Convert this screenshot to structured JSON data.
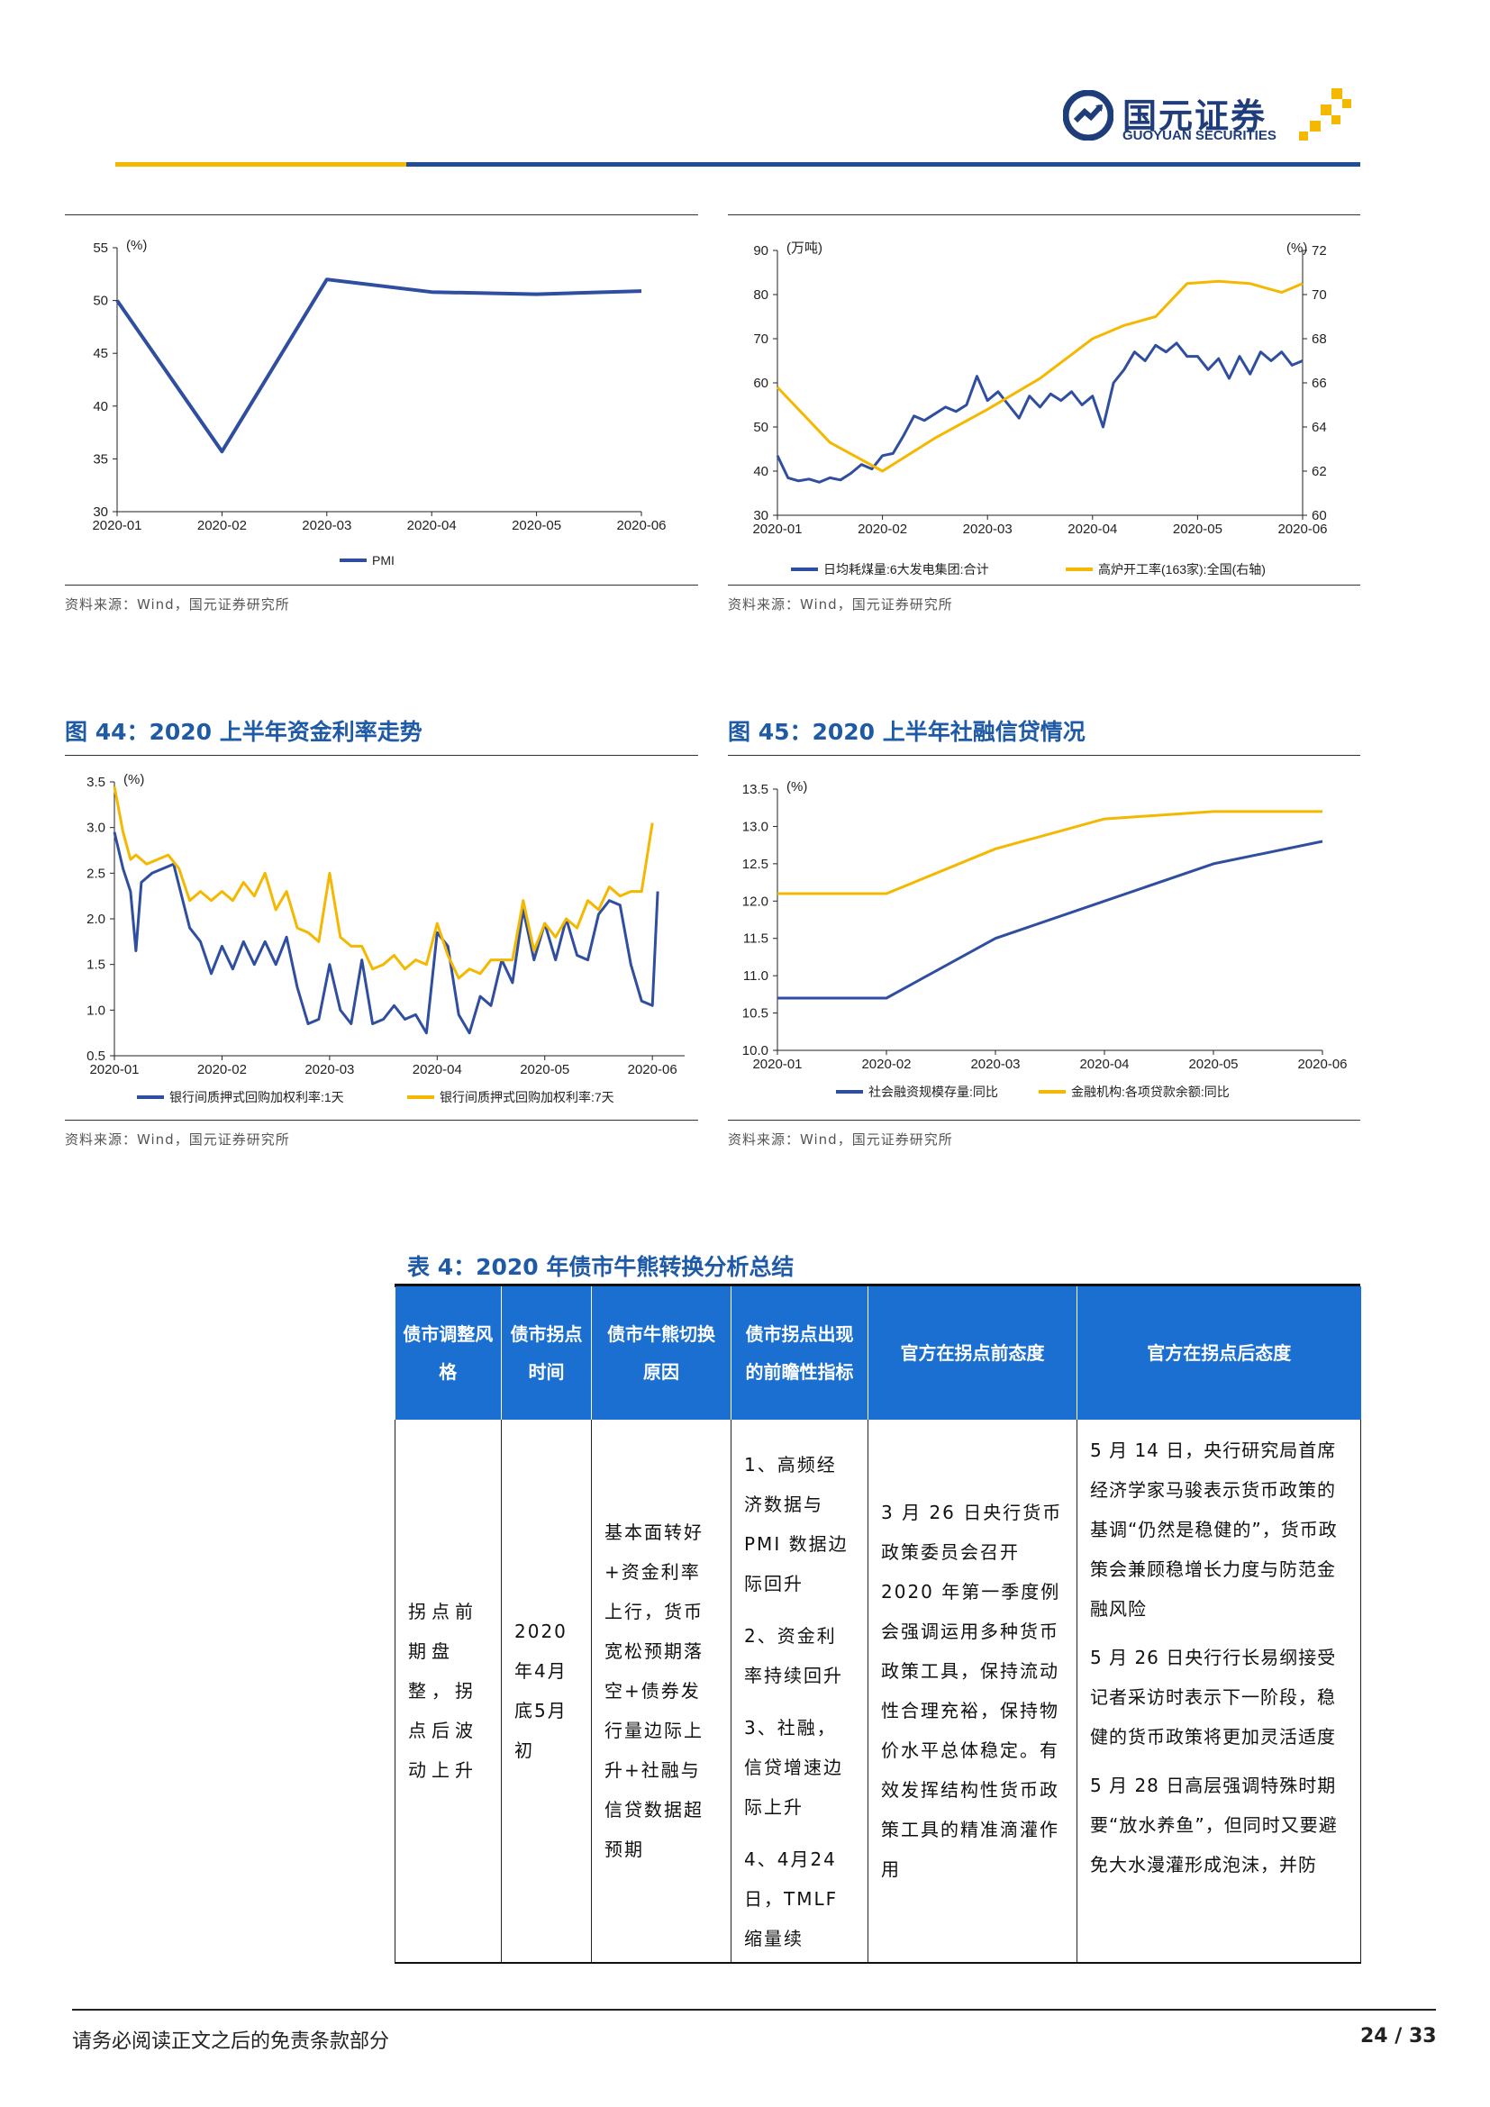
{
  "header": {
    "logo_cn": "国元证券",
    "logo_en": "GUOYUAN SECURITIES"
  },
  "charts": {
    "pmi": {
      "source": "资料来源：Wind，国元证券研究所",
      "chart_data": {
        "type": "line",
        "title": "",
        "y_unit": "(%)",
        "x": [
          "2020-01",
          "2020-02",
          "2020-03",
          "2020-04",
          "2020-05",
          "2020-06"
        ],
        "y_ticks": [
          "30",
          "35",
          "40",
          "45",
          "50",
          "55"
        ],
        "ylim": [
          30,
          55
        ],
        "series": [
          {
            "name": "PMI",
            "color": "#2f4ea0",
            "values": [
              50.0,
              35.7,
              52.0,
              50.8,
              50.6,
              50.9
            ]
          }
        ],
        "legend": "bottom"
      }
    },
    "coal": {
      "source": "资料来源：Wind，国元证券研究所",
      "chart_data": {
        "type": "line",
        "title": "",
        "y_unit_left": "(万吨)",
        "y_unit_right": "(%)",
        "x_ticks": [
          "2020-01",
          "2020-02",
          "2020-03",
          "2020-04",
          "2020-05",
          "2020-06"
        ],
        "y_ticks_left": [
          "30",
          "40",
          "50",
          "60",
          "70",
          "80",
          "90"
        ],
        "y_ticks_right": [
          "60",
          "62",
          "64",
          "66",
          "68",
          "70",
          "72"
        ],
        "ylim_left": [
          30,
          90
        ],
        "ylim_right": [
          60,
          72
        ],
        "series": [
          {
            "name": "日均耗煤量:6大发电集团:合计",
            "color": "#2f4ea0",
            "axis": "left",
            "x": [
              0,
              0.1,
              0.2,
              0.3,
              0.4,
              0.5,
              0.6,
              0.7,
              0.8,
              0.9,
              1.0,
              1.1,
              1.2,
              1.3,
              1.4,
              1.5,
              1.6,
              1.7,
              1.8,
              1.9,
              2.0,
              2.1,
              2.2,
              2.3,
              2.4,
              2.5,
              2.6,
              2.7,
              2.8,
              2.9,
              3.0,
              3.1,
              3.2,
              3.3,
              3.4,
              3.5,
              3.6,
              3.7,
              3.8,
              3.9,
              4.0,
              4.1,
              4.2,
              4.3,
              4.4,
              4.5,
              4.6,
              4.7,
              4.8,
              4.9,
              5.0
            ],
            "values": [
              43.5,
              38.5,
              37.8,
              38.2,
              37.5,
              38.5,
              38,
              39.5,
              41.5,
              40.5,
              43.5,
              44,
              48,
              52.5,
              51.5,
              53,
              54.5,
              53.5,
              55,
              61.5,
              56,
              58,
              55,
              52,
              57,
              54.5,
              57.5,
              56,
              58,
              55,
              57,
              50,
              60,
              63,
              67,
              65,
              68.5,
              67,
              69,
              66,
              66,
              63,
              65.5,
              61,
              66,
              62,
              67,
              65,
              67,
              64,
              65
            ]
          },
          {
            "name": "高炉开工率(163家):全国(右轴)",
            "color": "#f5b800",
            "axis": "right",
            "x": [
              0,
              0.5,
              1.0,
              1.5,
              2.0,
              2.5,
              3.0,
              3.3,
              3.6,
              3.9,
              4.2,
              4.5,
              4.8,
              5.0
            ],
            "values": [
              65.8,
              63.3,
              62.0,
              63.5,
              64.8,
              66.2,
              68.0,
              68.6,
              69.0,
              70.5,
              70.6,
              70.5,
              70.1,
              70.5
            ]
          }
        ],
        "legend": "bottom"
      }
    },
    "rates": {
      "title": "图 44：2020 上半年资金利率走势",
      "source": "资料来源：Wind，国元证券研究所",
      "chart_data": {
        "type": "line",
        "title": "图 44：2020 上半年资金利率走势",
        "y_unit": "(%)",
        "x_ticks": [
          "2020-01",
          "2020-02",
          "2020-03",
          "2020-04",
          "2020-05",
          "2020-06"
        ],
        "y_ticks": [
          "0.5",
          "1.0",
          "1.5",
          "2.0",
          "2.5",
          "3.0",
          "3.5"
        ],
        "ylim": [
          0.5,
          3.5
        ],
        "series": [
          {
            "name": "银行间质押式回购加权利率:1天",
            "color": "#2f4ea0",
            "x": [
              0,
              0.08,
              0.15,
              0.2,
              0.25,
              0.35,
              0.55,
              0.7,
              0.8,
              0.9,
              1.0,
              1.1,
              1.2,
              1.3,
              1.4,
              1.5,
              1.6,
              1.7,
              1.8,
              1.9,
              2.0,
              2.1,
              2.2,
              2.3,
              2.4,
              2.5,
              2.6,
              2.7,
              2.8,
              2.9,
              3.0,
              3.1,
              3.2,
              3.3,
              3.4,
              3.5,
              3.6,
              3.7,
              3.8,
              3.9,
              4.0,
              4.1,
              4.2,
              4.3,
              4.4,
              4.5,
              4.6,
              4.7,
              4.8,
              4.9,
              5.0,
              5.05
            ],
            "values": [
              2.95,
              2.55,
              2.3,
              1.65,
              2.4,
              2.5,
              2.6,
              1.9,
              1.75,
              1.4,
              1.7,
              1.45,
              1.75,
              1.5,
              1.75,
              1.5,
              1.8,
              1.25,
              0.85,
              0.9,
              1.5,
              1.0,
              0.85,
              1.55,
              0.85,
              0.9,
              1.05,
              0.9,
              0.95,
              0.75,
              1.85,
              1.7,
              0.95,
              0.75,
              1.15,
              1.05,
              1.55,
              1.3,
              2.1,
              1.55,
              1.95,
              1.55,
              2.0,
              1.6,
              1.55,
              2.05,
              2.2,
              2.15,
              1.5,
              1.1,
              1.05,
              2.3
            ]
          },
          {
            "name": "银行间质押式回购加权利率:7天",
            "color": "#f5b800",
            "x": [
              0,
              0.08,
              0.15,
              0.2,
              0.3,
              0.5,
              0.6,
              0.7,
              0.8,
              0.9,
              1.0,
              1.1,
              1.2,
              1.3,
              1.4,
              1.5,
              1.6,
              1.7,
              1.8,
              1.9,
              2.0,
              2.1,
              2.2,
              2.3,
              2.4,
              2.5,
              2.6,
              2.7,
              2.8,
              2.9,
              3.0,
              3.1,
              3.2,
              3.3,
              3.4,
              3.5,
              3.6,
              3.7,
              3.8,
              3.9,
              4.0,
              4.1,
              4.2,
              4.3,
              4.4,
              4.5,
              4.6,
              4.7,
              4.8,
              4.9,
              5.0
            ],
            "values": [
              3.45,
              2.95,
              2.65,
              2.7,
              2.6,
              2.7,
              2.55,
              2.2,
              2.3,
              2.2,
              2.3,
              2.2,
              2.4,
              2.25,
              2.5,
              2.1,
              2.3,
              1.9,
              1.85,
              1.75,
              2.5,
              1.8,
              1.7,
              1.7,
              1.45,
              1.5,
              1.6,
              1.45,
              1.55,
              1.5,
              1.95,
              1.6,
              1.35,
              1.45,
              1.4,
              1.55,
              1.55,
              1.55,
              2.2,
              1.65,
              1.95,
              1.8,
              2.0,
              1.9,
              2.2,
              2.1,
              2.35,
              2.25,
              2.3,
              2.3,
              3.05
            ]
          }
        ],
        "legend": "bottom"
      }
    },
    "credit": {
      "title": "图 45：2020 上半年社融信贷情况",
      "source": "资料来源：Wind，国元证券研究所",
      "chart_data": {
        "type": "line",
        "title": "图 45：2020 上半年社融信贷情况",
        "y_unit": "(%)",
        "x": [
          "2020-01",
          "2020-02",
          "2020-03",
          "2020-04",
          "2020-05",
          "2020-06"
        ],
        "y_ticks": [
          "10.0",
          "10.5",
          "11.0",
          "11.5",
          "12.0",
          "12.5",
          "13.0",
          "13.5"
        ],
        "ylim": [
          10.0,
          13.5
        ],
        "series": [
          {
            "name": "社会融资规模存量:同比",
            "color": "#2f4ea0",
            "values": [
              10.7,
              10.7,
              11.5,
              12.0,
              12.5,
              12.8
            ]
          },
          {
            "name": "金融机构:各项贷款余额:同比",
            "color": "#f5b800",
            "values": [
              12.1,
              12.1,
              12.7,
              13.1,
              13.2,
              13.2
            ]
          }
        ],
        "legend": "bottom"
      }
    }
  },
  "table": {
    "title": "表 4：2020 年债市牛熊转换分析总结",
    "headers": [
      "债市调整风格",
      "债市拐点时间",
      "债市牛熊切换原因",
      "债市拐点出现的前瞻性指标",
      "官方在拐点前态度",
      "官方在拐点后态度"
    ],
    "row": {
      "style": "拐点前期盘整，拐点后波动上升",
      "time": "2020年4月底5月初",
      "reason": "基本面转好+资金利率上行，货币宽松预期落空+债券发行量边际上升+社融与信贷数据超预期",
      "indicators": [
        "1、高频经济数据与 PMI 数据边际回升",
        "2、资金利率持续回升",
        "3、社融，信贷增速边际上升",
        "4、4月24日，TMLF 缩量续"
      ],
      "before": "3 月 26 日央行货币政策委员会召开 2020 年第一季度例会强调运用多种货币政策工具，保持流动性合理充裕，保持物价水平总体稳定。有效发挥结构性货币政策工具的精准滴灌作用",
      "after": [
        "5 月 14 日，央行研究局首席经济学家马骏表示货币政策的基调“仍然是稳健的”，货币政策会兼顾稳增长力度与防范金融风险",
        "5 月 26 日央行行长易纲接受记者采访时表示下一阶段，稳健的货币政策将更加灵活适度",
        "5 月 28 日高层强调特殊时期要“放水养鱼”，但同时又要避免大水漫灌形成泡沫，并防"
      ]
    }
  },
  "footer": {
    "disclaimer": "请务必阅读正文之后的免责条款部分",
    "page": "24 / 33"
  }
}
